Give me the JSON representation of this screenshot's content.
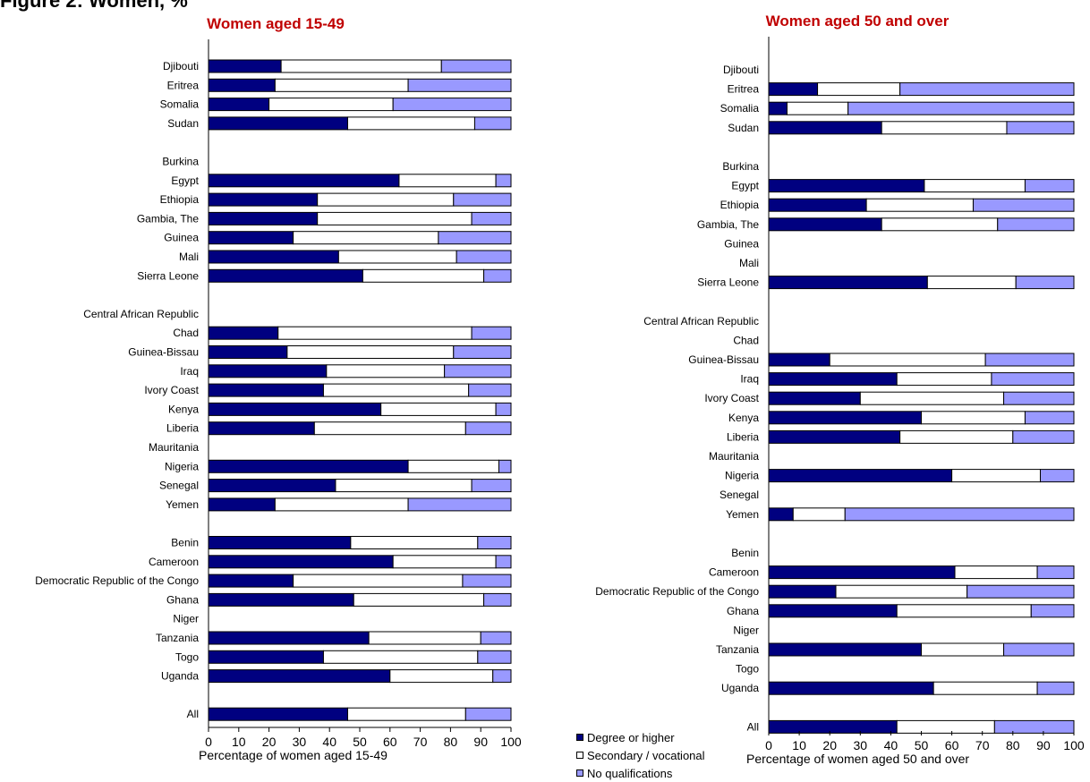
{
  "figure_title_partial": "Figure 2: Women, %",
  "colors": {
    "degree": "#000080",
    "secondary": "#ffffff",
    "none": "#9999ff",
    "title_red": "#c00000"
  },
  "legend": [
    {
      "key": "degree",
      "label": "Degree or higher"
    },
    {
      "key": "secondary",
      "label": "Secondary / vocational"
    },
    {
      "key": "none",
      "label": "No qualifications"
    }
  ],
  "chart_data": [
    {
      "type": "bar",
      "orientation": "horizontal",
      "stacked": true,
      "title": "Women aged 15-49",
      "xlabel": "Percentage of women aged 15-49",
      "xlim": [
        0,
        100
      ],
      "xticks": [
        0,
        10,
        20,
        30,
        40,
        50,
        60,
        70,
        80,
        90,
        100
      ],
      "series_names": [
        "Degree or higher",
        "Secondary / vocational",
        "No qualifications"
      ],
      "categories": [
        {
          "label": "Djibouti",
          "values": [
            24,
            53,
            23
          ]
        },
        {
          "label": "Eritrea",
          "values": [
            22,
            44,
            34
          ]
        },
        {
          "label": "Somalia",
          "values": [
            20,
            41,
            39
          ]
        },
        {
          "label": "Sudan",
          "values": [
            46,
            42,
            12
          ]
        },
        {
          "label": "",
          "values": null
        },
        {
          "label": "Burkina",
          "values": null
        },
        {
          "label": "Egypt",
          "values": [
            63,
            32,
            5
          ]
        },
        {
          "label": "Ethiopia",
          "values": [
            36,
            45,
            19
          ]
        },
        {
          "label": "Gambia, The",
          "values": [
            36,
            51,
            13
          ]
        },
        {
          "label": "Guinea",
          "values": [
            28,
            48,
            24
          ]
        },
        {
          "label": "Mali",
          "values": [
            43,
            39,
            18
          ]
        },
        {
          "label": "Sierra Leone",
          "values": [
            51,
            40,
            9
          ]
        },
        {
          "label": "",
          "values": null
        },
        {
          "label": "Central African Republic",
          "values": null
        },
        {
          "label": "Chad",
          "values": [
            23,
            64,
            13
          ]
        },
        {
          "label": "Guinea-Bissau",
          "values": [
            26,
            55,
            19
          ]
        },
        {
          "label": "Iraq",
          "values": [
            39,
            39,
            22
          ]
        },
        {
          "label": "Ivory Coast",
          "values": [
            38,
            48,
            14
          ]
        },
        {
          "label": "Kenya",
          "values": [
            57,
            38,
            5
          ]
        },
        {
          "label": "Liberia",
          "values": [
            35,
            50,
            15
          ]
        },
        {
          "label": "Mauritania",
          "values": null
        },
        {
          "label": "Nigeria",
          "values": [
            66,
            30,
            4
          ]
        },
        {
          "label": "Senegal",
          "values": [
            42,
            45,
            13
          ]
        },
        {
          "label": "Yemen",
          "values": [
            22,
            44,
            34
          ]
        },
        {
          "label": "",
          "values": null
        },
        {
          "label": "Benin",
          "values": [
            47,
            42,
            11
          ]
        },
        {
          "label": "Cameroon",
          "values": [
            61,
            34,
            5
          ]
        },
        {
          "label": "Democratic Republic of the Congo",
          "values": [
            28,
            56,
            16
          ]
        },
        {
          "label": "Ghana",
          "values": [
            48,
            43,
            9
          ]
        },
        {
          "label": "Niger",
          "values": null
        },
        {
          "label": "Tanzania",
          "values": [
            53,
            37,
            10
          ]
        },
        {
          "label": "Togo",
          "values": [
            38,
            51,
            11
          ]
        },
        {
          "label": "Uganda",
          "values": [
            60,
            34,
            6
          ]
        },
        {
          "label": "",
          "values": null
        },
        {
          "label": "All",
          "values": [
            46,
            39,
            15
          ]
        }
      ]
    },
    {
      "type": "bar",
      "orientation": "horizontal",
      "stacked": true,
      "title": "Women aged 50 and over",
      "xlabel": "Percentage of women aged 50 and over",
      "xlim": [
        0,
        100
      ],
      "xticks": [
        0,
        10,
        20,
        30,
        40,
        50,
        60,
        70,
        80,
        90,
        100
      ],
      "series_names": [
        "Degree or higher",
        "Secondary / vocational",
        "No qualifications"
      ],
      "categories": [
        {
          "label": "Djibouti",
          "values": null
        },
        {
          "label": "Eritrea",
          "values": [
            16,
            27,
            57
          ]
        },
        {
          "label": "Somalia",
          "values": [
            6,
            20,
            74
          ]
        },
        {
          "label": "Sudan",
          "values": [
            37,
            41,
            22
          ]
        },
        {
          "label": "",
          "values": null
        },
        {
          "label": "Burkina",
          "values": null
        },
        {
          "label": "Egypt",
          "values": [
            51,
            33,
            16
          ]
        },
        {
          "label": "Ethiopia",
          "values": [
            32,
            35,
            33
          ]
        },
        {
          "label": "Gambia, The",
          "values": [
            37,
            38,
            25
          ]
        },
        {
          "label": "Guinea",
          "values": null
        },
        {
          "label": "Mali",
          "values": null
        },
        {
          "label": "Sierra Leone",
          "values": [
            52,
            29,
            19
          ]
        },
        {
          "label": "",
          "values": null
        },
        {
          "label": "Central African Republic",
          "values": null
        },
        {
          "label": "Chad",
          "values": null
        },
        {
          "label": "Guinea-Bissau",
          "values": [
            20,
            51,
            29
          ]
        },
        {
          "label": "Iraq",
          "values": [
            42,
            31,
            27
          ]
        },
        {
          "label": "Ivory Coast",
          "values": [
            30,
            47,
            23
          ]
        },
        {
          "label": "Kenya",
          "values": [
            50,
            34,
            16
          ]
        },
        {
          "label": "Liberia",
          "values": [
            43,
            37,
            20
          ]
        },
        {
          "label": "Mauritania",
          "values": null
        },
        {
          "label": "Nigeria",
          "values": [
            60,
            29,
            11
          ]
        },
        {
          "label": "Senegal",
          "values": null
        },
        {
          "label": "Yemen",
          "values": [
            8,
            17,
            75
          ]
        },
        {
          "label": "",
          "values": null
        },
        {
          "label": "Benin",
          "values": null
        },
        {
          "label": "Cameroon",
          "values": [
            61,
            27,
            12
          ]
        },
        {
          "label": "Democratic Republic of the Congo",
          "values": [
            22,
            43,
            35
          ]
        },
        {
          "label": "Ghana",
          "values": [
            42,
            44,
            14
          ]
        },
        {
          "label": "Niger",
          "values": null
        },
        {
          "label": "Tanzania",
          "values": [
            50,
            27,
            23
          ]
        },
        {
          "label": "Togo",
          "values": null
        },
        {
          "label": "Uganda",
          "values": [
            54,
            34,
            12
          ]
        },
        {
          "label": "",
          "values": null
        },
        {
          "label": "All",
          "values": [
            42,
            32,
            26
          ]
        }
      ]
    }
  ]
}
